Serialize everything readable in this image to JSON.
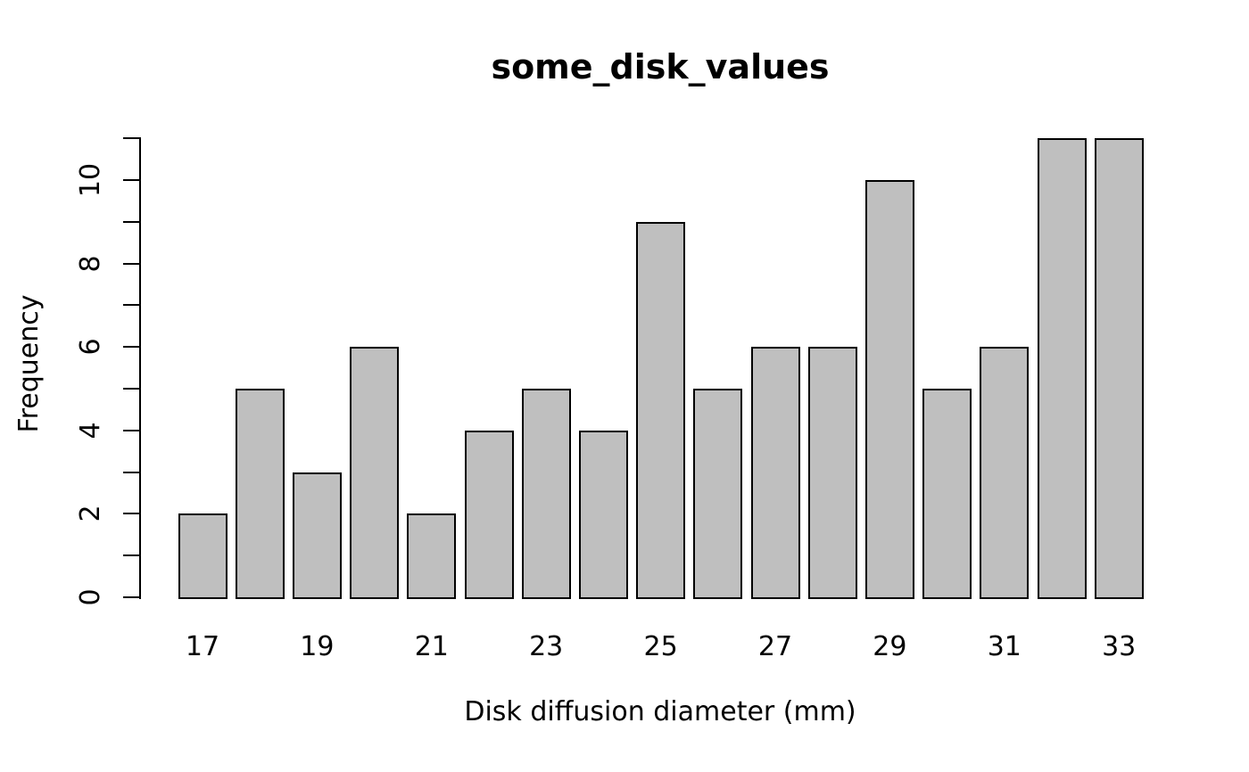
{
  "chart_data": {
    "type": "bar",
    "style": "R-barplot-histogram",
    "title": "some_disk_values",
    "xlabel": "Disk diffusion diameter (mm)",
    "ylabel": "Frequency",
    "categories": [
      17,
      18,
      19,
      20,
      21,
      22,
      23,
      24,
      25,
      26,
      27,
      28,
      29,
      30,
      31,
      32,
      33
    ],
    "values": [
      2,
      5,
      3,
      6,
      2,
      4,
      5,
      4,
      9,
      5,
      6,
      6,
      10,
      5,
      6,
      11,
      11
    ],
    "x_tick_labels": [
      "17",
      "19",
      "21",
      "23",
      "25",
      "27",
      "29",
      "31",
      "33"
    ],
    "y_tick_labels": [
      "0",
      "2",
      "4",
      "6",
      "8",
      "10"
    ],
    "y_ticks_labeled_values": [
      0,
      2,
      4,
      6,
      8,
      10
    ],
    "y_ticks_all_values": [
      0,
      1,
      2,
      3,
      4,
      5,
      6,
      7,
      8,
      9,
      10,
      11
    ],
    "ylim": [
      0,
      11
    ],
    "grid": false,
    "legend": "none",
    "bar_fill_color": "#bfbfbf",
    "bar_border_color": "#000000",
    "axis_color": "#000000",
    "background_color": "#ffffff"
  }
}
